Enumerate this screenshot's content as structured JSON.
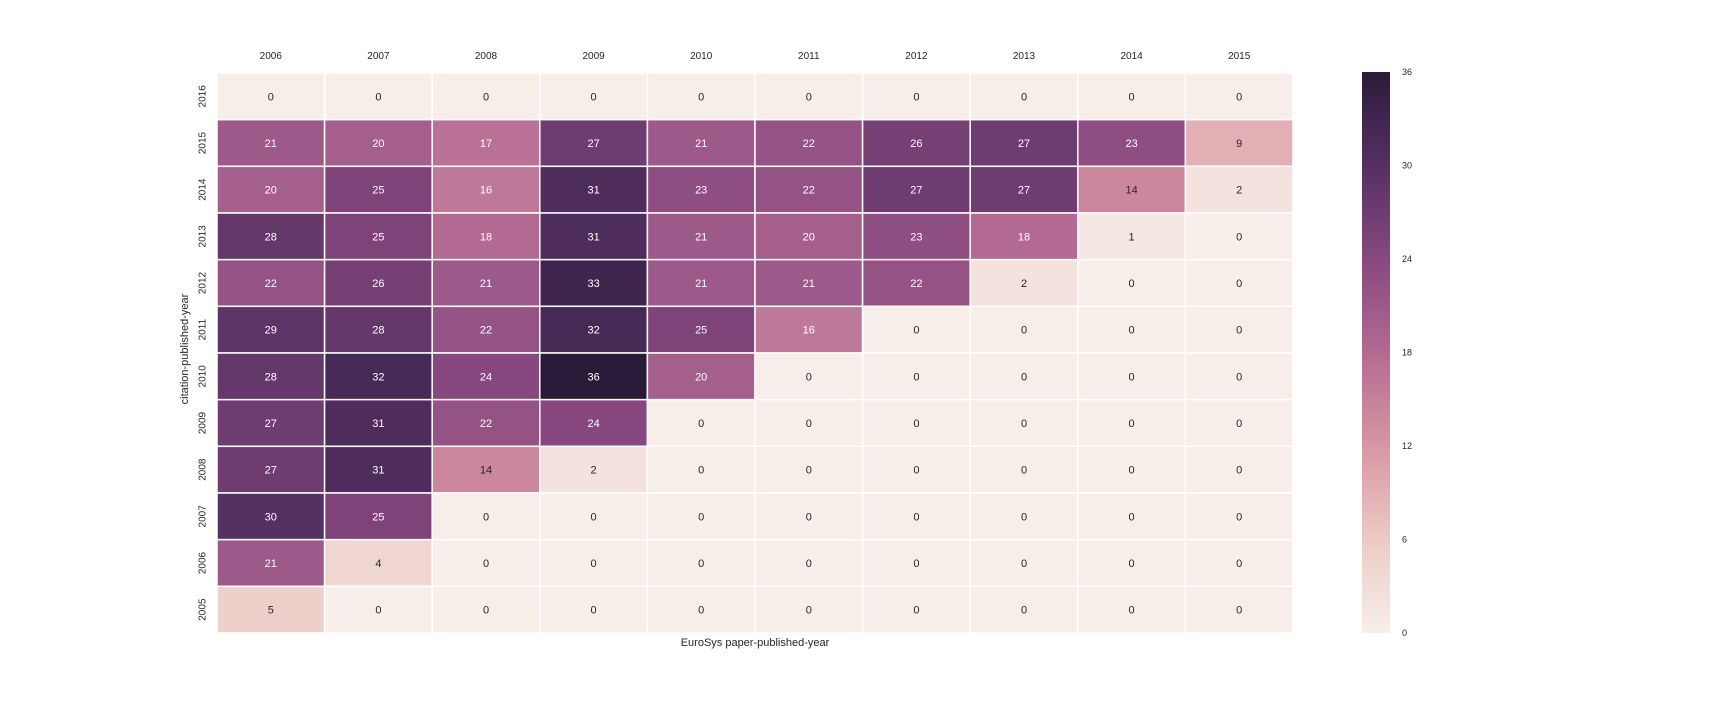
{
  "chart_data": {
    "type": "heatmap",
    "xlabel": "EuroSys paper-published-year",
    "ylabel": "citation-published-year",
    "x_tick_position": "top",
    "columns": [
      "2006",
      "2007",
      "2008",
      "2009",
      "2010",
      "2011",
      "2012",
      "2013",
      "2014",
      "2015"
    ],
    "rows": [
      "2016",
      "2015",
      "2014",
      "2013",
      "2012",
      "2011",
      "2010",
      "2009",
      "2008",
      "2007",
      "2006",
      "2005"
    ],
    "values": [
      [
        0,
        0,
        0,
        0,
        0,
        0,
        0,
        0,
        0,
        0
      ],
      [
        21,
        20,
        17,
        27,
        21,
        22,
        26,
        27,
        23,
        9
      ],
      [
        20,
        25,
        16,
        31,
        23,
        22,
        27,
        27,
        14,
        2
      ],
      [
        28,
        25,
        18,
        31,
        21,
        20,
        23,
        18,
        1,
        0
      ],
      [
        22,
        26,
        21,
        33,
        21,
        21,
        22,
        2,
        0,
        0
      ],
      [
        29,
        28,
        22,
        32,
        25,
        16,
        0,
        0,
        0,
        0
      ],
      [
        28,
        32,
        24,
        36,
        20,
        0,
        0,
        0,
        0,
        0
      ],
      [
        27,
        31,
        22,
        24,
        0,
        0,
        0,
        0,
        0,
        0
      ],
      [
        27,
        31,
        14,
        2,
        0,
        0,
        0,
        0,
        0,
        0
      ],
      [
        30,
        25,
        0,
        0,
        0,
        0,
        0,
        0,
        0,
        0
      ],
      [
        21,
        4,
        0,
        0,
        0,
        0,
        0,
        0,
        0,
        0
      ],
      [
        5,
        0,
        0,
        0,
        0,
        0,
        0,
        0,
        0,
        0
      ]
    ],
    "vmin": 0,
    "vmax": 36,
    "colorbar_ticks": [
      "0",
      "6",
      "12",
      "18",
      "24",
      "30",
      "36"
    ],
    "colormap": [
      "#f7eeea",
      "#eccac4",
      "#d796a3",
      "#b36a92",
      "#86487f",
      "#553062",
      "#2b1b3a"
    ],
    "annotations": true,
    "grid": false,
    "colorbar": "right"
  }
}
